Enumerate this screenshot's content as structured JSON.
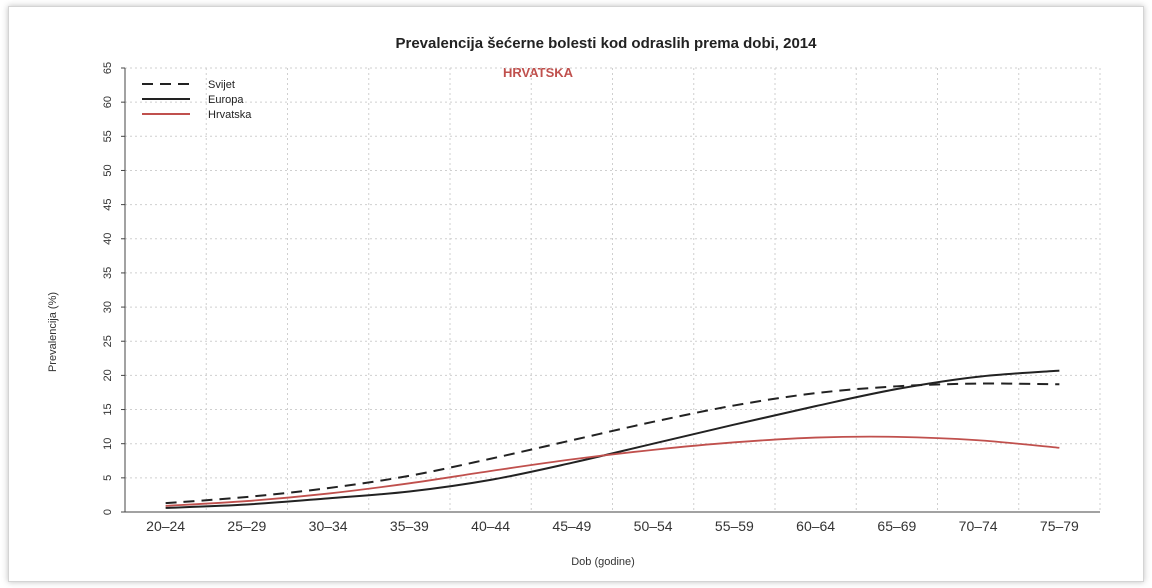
{
  "chart_data": {
    "type": "line",
    "title": "Prevalencija šećerne bolesti kod odraslih prema dobi, 2014",
    "subtitle": "HRVATSKA",
    "xlabel": "Dob (godine)",
    "ylabel": "Prevalencija (%)",
    "categories": [
      "20–24",
      "25–29",
      "30–34",
      "35–39",
      "40–44",
      "45–49",
      "50–54",
      "55–59",
      "60–64",
      "65–69",
      "70–74",
      "75–79"
    ],
    "y_ticks": [
      0,
      5,
      10,
      15,
      20,
      25,
      30,
      35,
      40,
      45,
      50,
      55,
      60,
      65
    ],
    "ylim": [
      0,
      65
    ],
    "grid": true,
    "legend_position": "top-left",
    "series": [
      {
        "name": "Svijet",
        "values": [
          1.3,
          2.2,
          3.5,
          5.3,
          7.8,
          10.5,
          13.2,
          15.6,
          17.4,
          18.4,
          18.8,
          18.7
        ],
        "color": "#222222",
        "dash": true
      },
      {
        "name": "Europa",
        "values": [
          0.6,
          1.1,
          2.0,
          3.0,
          4.7,
          7.2,
          10.0,
          12.8,
          15.5,
          18.0,
          19.8,
          20.7
        ],
        "color": "#222222",
        "dash": false
      },
      {
        "name": "Hrvatska",
        "values": [
          0.9,
          1.6,
          2.7,
          4.2,
          6.0,
          7.7,
          9.1,
          10.2,
          10.9,
          11.0,
          10.5,
          9.4
        ],
        "color": "#c0504d",
        "dash": false
      }
    ]
  }
}
